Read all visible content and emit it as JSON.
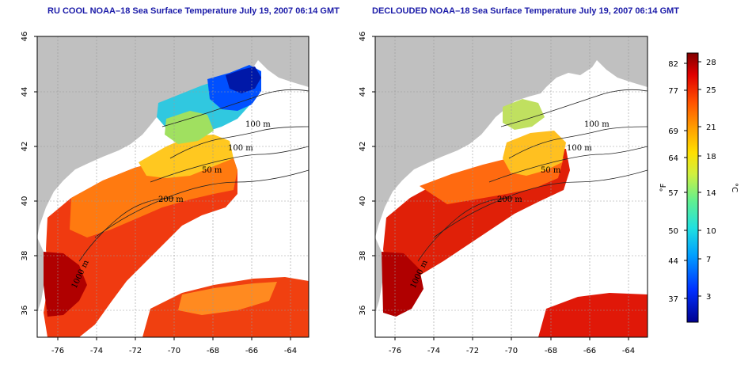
{
  "panels": [
    {
      "title": "RU COOL NOAA–18 Sea Surface Temperature July 19, 2007 06:14 GMT"
    },
    {
      "title": "DECLOUDED NOAA–18 Sea Surface Temperature July 19, 2007 06:14 GMT"
    }
  ],
  "axes": {
    "lon_ticks": [
      "-76",
      "-74",
      "-72",
      "-70",
      "-68",
      "-66",
      "-64"
    ],
    "lat_ticks": [
      "46",
      "44",
      "42",
      "40",
      "38",
      "36"
    ]
  },
  "contours": [
    "100 m",
    "100 m",
    "50 m",
    "200 m",
    "1000 m"
  ],
  "contours_right": [
    "100 m",
    "100 m",
    "50 m",
    "200 m",
    "1000 m"
  ],
  "colorbar": {
    "left_unit": "°F",
    "right_unit": "°C",
    "f_ticks": [
      "82",
      "77",
      "69",
      "64",
      "57",
      "50",
      "44",
      "37"
    ],
    "c_ticks": [
      "28",
      "25",
      "21",
      "18",
      "14",
      "10",
      "7",
      "3"
    ],
    "colors": [
      "#00008f",
      "#0030ff",
      "#00a0ff",
      "#20e0e0",
      "#60f090",
      "#d0f040",
      "#ffe000",
      "#ffa000",
      "#ff5000",
      "#e00000",
      "#800000"
    ]
  },
  "colors": {
    "land": "#c0c0c0",
    "ocean_missing": "#ffffff"
  }
}
